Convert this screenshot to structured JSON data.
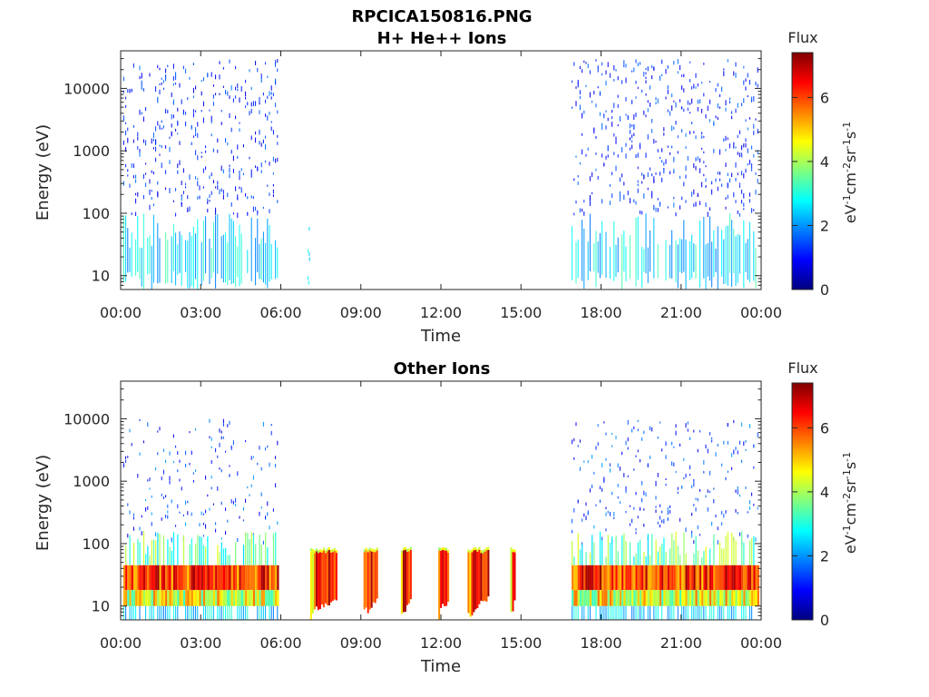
{
  "figure": {
    "title_line1": "RPCICA150816.PNG"
  },
  "chart_data": [
    {
      "type": "heatmap",
      "title": "H+ He++ Ions",
      "xlabel": "Time",
      "ylabel": "Energy (eV)",
      "x_ticks": [
        "00:00",
        "03:00",
        "06:00",
        "09:00",
        "12:00",
        "15:00",
        "18:00",
        "21:00",
        "00:00"
      ],
      "y_ticks": [
        "10",
        "100",
        "1000",
        "10000"
      ],
      "y_scale": "log",
      "ylim": [
        6,
        40000
      ],
      "xlim_hours": [
        0,
        24
      ],
      "colorbar": {
        "label": "Flux",
        "units_label": "eV-1cm-2sr-1s-1",
        "ticks": [
          "0",
          "2",
          "4",
          "6"
        ],
        "range": [
          0,
          7.4
        ]
      },
      "data_segments_hours": [
        [
          0.1,
          5.9
        ],
        [
          16.9,
          23.9
        ]
      ],
      "sparse_segments_hours": [
        [
          7.0,
          7.1
        ]
      ],
      "low_energy_band": {
        "energy_range_eV": [
          6,
          100
        ],
        "flux_level": 2.5
      },
      "high_energy_band": {
        "energy_range_eV": [
          100,
          30000
        ],
        "flux_level": 1.0
      }
    },
    {
      "type": "heatmap",
      "title": "Other Ions",
      "xlabel": "Time",
      "ylabel": "Energy (eV)",
      "x_ticks": [
        "00:00",
        "03:00",
        "06:00",
        "09:00",
        "12:00",
        "15:00",
        "18:00",
        "21:00",
        "00:00"
      ],
      "y_ticks": [
        "10",
        "100",
        "1000",
        "10000"
      ],
      "y_scale": "log",
      "ylim": [
        6,
        40000
      ],
      "xlim_hours": [
        0,
        24
      ],
      "colorbar": {
        "label": "Flux",
        "units_label": "eV-1cm-2sr-1s-1",
        "ticks": [
          "0",
          "2",
          "4",
          "6"
        ],
        "range": [
          0,
          7.4
        ]
      },
      "data_segments_hours": [
        [
          0.1,
          5.9
        ],
        [
          16.9,
          23.9
        ]
      ],
      "intense_band": {
        "energy_range_eV": [
          18,
          45
        ],
        "flux_level": 6.5
      },
      "bursts_hours": [
        [
          7.1,
          8.1
        ],
        [
          9.1,
          9.6
        ],
        [
          10.5,
          10.9
        ],
        [
          11.9,
          12.3
        ],
        [
          13.0,
          13.8
        ],
        [
          14.6,
          14.8
        ]
      ],
      "burst_energy_range_eV": [
        6,
        80
      ],
      "burst_flux_level": 6.8
    }
  ]
}
